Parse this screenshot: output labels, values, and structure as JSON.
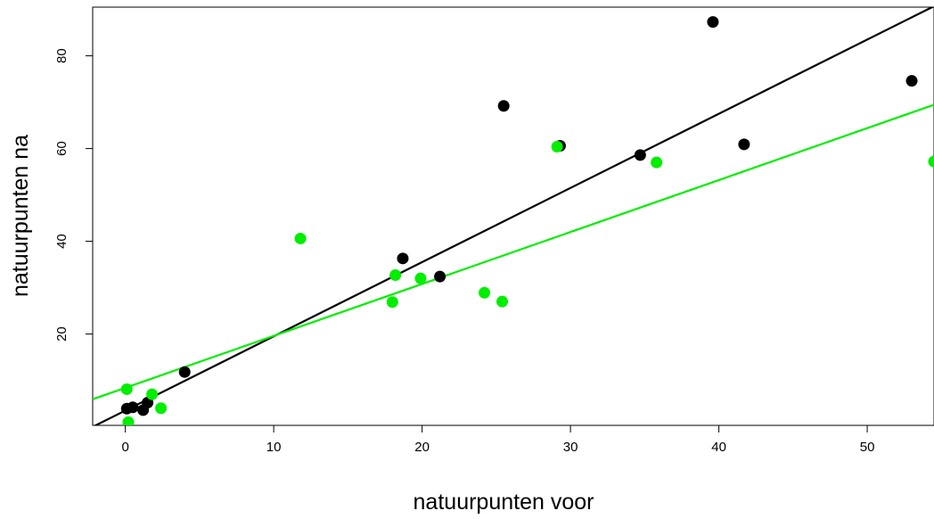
{
  "chart_data": {
    "type": "scatter",
    "title": "",
    "xlabel": "natuurpunten voor",
    "ylabel": "natuurpunten na",
    "xlim": [
      -2.2,
      54.5
    ],
    "ylim": [
      0.3,
      90.5
    ],
    "xticks": [
      0,
      10,
      20,
      30,
      40,
      50
    ],
    "yticks": [
      20,
      40,
      60,
      80
    ],
    "grid": false,
    "legend": "none",
    "series": [
      {
        "color": "#000000",
        "points": [
          {
            "x": 0.1,
            "y": 3.9
          },
          {
            "x": 0.5,
            "y": 4.2
          },
          {
            "x": 1.2,
            "y": 3.6
          },
          {
            "x": 1.5,
            "y": 5.2
          },
          {
            "x": 4.0,
            "y": 11.8
          },
          {
            "x": 18.7,
            "y": 36.3
          },
          {
            "x": 21.2,
            "y": 32.4
          },
          {
            "x": 25.5,
            "y": 69.2
          },
          {
            "x": 29.3,
            "y": 60.6
          },
          {
            "x": 34.7,
            "y": 58.6
          },
          {
            "x": 39.6,
            "y": 87.3
          },
          {
            "x": 41.7,
            "y": 60.9
          },
          {
            "x": 53.0,
            "y": 74.6
          }
        ],
        "fit": {
          "intercept": 3.5,
          "slope": 1.6
        }
      },
      {
        "color": "#00ee00",
        "points": [
          {
            "x": 0.1,
            "y": 8.1
          },
          {
            "x": 0.2,
            "y": 1.0
          },
          {
            "x": 1.8,
            "y": 7.0
          },
          {
            "x": 2.4,
            "y": 4.0
          },
          {
            "x": 11.8,
            "y": 40.6
          },
          {
            "x": 18.0,
            "y": 26.9
          },
          {
            "x": 18.2,
            "y": 32.7
          },
          {
            "x": 19.9,
            "y": 32.0
          },
          {
            "x": 24.2,
            "y": 28.9
          },
          {
            "x": 25.4,
            "y": 27.0
          },
          {
            "x": 29.1,
            "y": 60.4
          },
          {
            "x": 35.8,
            "y": 57.0
          },
          {
            "x": 54.5,
            "y": 57.2
          }
        ],
        "fit": {
          "intercept": 8.4,
          "slope": 1.12
        }
      }
    ]
  }
}
